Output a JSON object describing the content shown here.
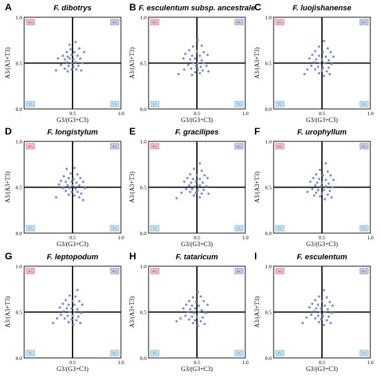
{
  "colors": {
    "point": "#7b8fcf",
    "frame": "#000000",
    "AG_fill": "#f3c6d3",
    "AG_border": "#c0506e",
    "AG_text": "#a8324f",
    "AU_fill": "#cfd5ee",
    "AU_border": "#5d6aa8",
    "AU_text": "#3f4b8c",
    "TG_fill": "#cbe7f3",
    "TG_border": "#4c9ac0",
    "TG_text": "#2f7ea6",
    "TC_fill": "#cbe7f3",
    "TC_border": "#4c9ac0",
    "TC_text": "#2f7ea6"
  },
  "chart_data": [
    {
      "panel": "A",
      "title": "F. dibotrys",
      "type": "scatter",
      "xlabel": "G3/(G3+C3)",
      "ylabel": "A3/(A3+T3)",
      "xlim": [
        0,
        1.0
      ],
      "ylim": [
        0,
        1.0
      ],
      "xticks": [
        "0.5",
        "1.0"
      ],
      "yticks": [
        "0.0",
        "0.5",
        "1.0"
      ],
      "quadrants": {
        "top_left": "AG",
        "top_right": "AU",
        "bottom_left": "TC",
        "bottom_right": "TG"
      },
      "points": [
        [
          0.47,
          0.7
        ],
        [
          0.53,
          0.73
        ],
        [
          0.48,
          0.65
        ],
        [
          0.44,
          0.62
        ],
        [
          0.52,
          0.62
        ],
        [
          0.57,
          0.66
        ],
        [
          0.4,
          0.58
        ],
        [
          0.45,
          0.57
        ],
        [
          0.49,
          0.59
        ],
        [
          0.55,
          0.58
        ],
        [
          0.62,
          0.62
        ],
        [
          0.35,
          0.55
        ],
        [
          0.42,
          0.54
        ],
        [
          0.47,
          0.55
        ],
        [
          0.51,
          0.54
        ],
        [
          0.58,
          0.55
        ],
        [
          0.44,
          0.51
        ],
        [
          0.49,
          0.5
        ],
        [
          0.53,
          0.51
        ],
        [
          0.6,
          0.5
        ],
        [
          0.38,
          0.48
        ],
        [
          0.46,
          0.47
        ],
        [
          0.51,
          0.46
        ],
        [
          0.56,
          0.47
        ],
        [
          0.42,
          0.44
        ],
        [
          0.49,
          0.43
        ],
        [
          0.54,
          0.43
        ],
        [
          0.33,
          0.42
        ],
        [
          0.45,
          0.41
        ],
        [
          0.59,
          0.42
        ]
      ]
    },
    {
      "panel": "B",
      "title": "F. esculentum subsp. ancestrale",
      "type": "scatter",
      "xlabel": "G3/(G3+C3)",
      "ylabel": "A3/(A3+T3)",
      "xlim": [
        0,
        1.0
      ],
      "ylim": [
        0,
        1.0
      ],
      "xticks": [
        "0.5",
        "1.0"
      ],
      "yticks": [
        "0.0",
        "0.5",
        "1.0"
      ],
      "quadrants": {
        "top_left": "AG",
        "top_right": "AU",
        "bottom_left": "TC",
        "bottom_right": "TG"
      },
      "points": [
        [
          0.51,
          0.75
        ],
        [
          0.46,
          0.68
        ],
        [
          0.55,
          0.69
        ],
        [
          0.42,
          0.64
        ],
        [
          0.5,
          0.63
        ],
        [
          0.57,
          0.62
        ],
        [
          0.38,
          0.6
        ],
        [
          0.45,
          0.58
        ],
        [
          0.53,
          0.58
        ],
        [
          0.61,
          0.59
        ],
        [
          0.36,
          0.55
        ],
        [
          0.43,
          0.54
        ],
        [
          0.48,
          0.55
        ],
        [
          0.55,
          0.53
        ],
        [
          0.46,
          0.5
        ],
        [
          0.51,
          0.5
        ],
        [
          0.57,
          0.5
        ],
        [
          0.41,
          0.48
        ],
        [
          0.49,
          0.47
        ],
        [
          0.54,
          0.46
        ],
        [
          0.6,
          0.47
        ],
        [
          0.44,
          0.44
        ],
        [
          0.51,
          0.43
        ],
        [
          0.56,
          0.42
        ],
        [
          0.37,
          0.43
        ],
        [
          0.48,
          0.4
        ],
        [
          0.53,
          0.39
        ],
        [
          0.31,
          0.38
        ],
        [
          0.62,
          0.41
        ],
        [
          0.45,
          0.37
        ]
      ]
    },
    {
      "panel": "C",
      "title": "F. luojishanense",
      "type": "scatter",
      "xlabel": "G3/(G3+C3)",
      "ylabel": "A3/(A3+T3)",
      "xlim": [
        0,
        1.0
      ],
      "ylim": [
        0,
        1.0
      ],
      "xticks": [
        "0.5",
        "1.0"
      ],
      "yticks": [
        "0.0",
        "0.5",
        "1.0"
      ],
      "quadrants": {
        "top_left": "AG",
        "top_right": "AU",
        "bottom_left": "TC",
        "bottom_right": "TG"
      },
      "points": [
        [
          0.52,
          0.74
        ],
        [
          0.47,
          0.68
        ],
        [
          0.56,
          0.66
        ],
        [
          0.43,
          0.63
        ],
        [
          0.51,
          0.62
        ],
        [
          0.59,
          0.62
        ],
        [
          0.4,
          0.59
        ],
        [
          0.47,
          0.58
        ],
        [
          0.54,
          0.57
        ],
        [
          0.62,
          0.57
        ],
        [
          0.37,
          0.55
        ],
        [
          0.44,
          0.54
        ],
        [
          0.5,
          0.54
        ],
        [
          0.57,
          0.53
        ],
        [
          0.42,
          0.51
        ],
        [
          0.48,
          0.5
        ],
        [
          0.53,
          0.5
        ],
        [
          0.6,
          0.49
        ],
        [
          0.39,
          0.47
        ],
        [
          0.46,
          0.46
        ],
        [
          0.51,
          0.45
        ],
        [
          0.57,
          0.45
        ],
        [
          0.43,
          0.43
        ],
        [
          0.5,
          0.42
        ],
        [
          0.55,
          0.41
        ],
        [
          0.35,
          0.43
        ],
        [
          0.47,
          0.39
        ],
        [
          0.32,
          0.38
        ],
        [
          0.58,
          0.38
        ],
        [
          0.52,
          0.36
        ]
      ]
    },
    {
      "panel": "D",
      "title": "F. longistylum",
      "type": "scatter",
      "xlabel": "G3/(G3+C3)",
      "ylabel": "A3/(A3+T3)",
      "xlim": [
        0,
        1.0
      ],
      "ylim": [
        0,
        1.0
      ],
      "xticks": [
        "0.5",
        "1.0"
      ],
      "yticks": [
        "0.0",
        "0.5",
        "1.0"
      ],
      "quadrants": {
        "top_left": "AG",
        "top_right": "AU",
        "bottom_left": "TC",
        "bottom_right": "TG"
      },
      "points": [
        [
          0.44,
          0.7
        ],
        [
          0.52,
          0.71
        ],
        [
          0.48,
          0.65
        ],
        [
          0.41,
          0.62
        ],
        [
          0.55,
          0.64
        ],
        [
          0.46,
          0.6
        ],
        [
          0.51,
          0.59
        ],
        [
          0.58,
          0.6
        ],
        [
          0.38,
          0.57
        ],
        [
          0.43,
          0.56
        ],
        [
          0.49,
          0.56
        ],
        [
          0.54,
          0.55
        ],
        [
          0.61,
          0.56
        ],
        [
          0.36,
          0.53
        ],
        [
          0.45,
          0.52
        ],
        [
          0.5,
          0.52
        ],
        [
          0.57,
          0.52
        ],
        [
          0.4,
          0.49
        ],
        [
          0.47,
          0.49
        ],
        [
          0.53,
          0.48
        ],
        [
          0.63,
          0.49
        ],
        [
          0.43,
          0.46
        ],
        [
          0.49,
          0.45
        ],
        [
          0.55,
          0.45
        ],
        [
          0.59,
          0.43
        ],
        [
          0.46,
          0.42
        ],
        [
          0.52,
          0.41
        ],
        [
          0.33,
          0.39
        ],
        [
          0.57,
          0.39
        ],
        [
          0.61,
          0.36
        ]
      ]
    },
    {
      "panel": "E",
      "title": "F. gracilipes",
      "type": "scatter",
      "xlabel": "G3/(G3+C3)",
      "ylabel": "A3/(A3+T3)",
      "xlim": [
        0,
        1.0
      ],
      "ylim": [
        0,
        1.0
      ],
      "xticks": [
        "0.5",
        "1.0"
      ],
      "yticks": [
        "0.0",
        "0.5",
        "1.0"
      ],
      "quadrants": {
        "top_left": "AG",
        "top_right": "AU",
        "bottom_left": "TC",
        "bottom_right": "TG"
      },
      "points": [
        [
          0.53,
          0.76
        ],
        [
          0.47,
          0.7
        ],
        [
          0.55,
          0.68
        ],
        [
          0.43,
          0.64
        ],
        [
          0.5,
          0.63
        ],
        [
          0.58,
          0.63
        ],
        [
          0.4,
          0.6
        ],
        [
          0.46,
          0.59
        ],
        [
          0.53,
          0.59
        ],
        [
          0.61,
          0.6
        ],
        [
          0.37,
          0.56
        ],
        [
          0.44,
          0.55
        ],
        [
          0.49,
          0.56
        ],
        [
          0.56,
          0.55
        ],
        [
          0.42,
          0.52
        ],
        [
          0.48,
          0.51
        ],
        [
          0.53,
          0.52
        ],
        [
          0.6,
          0.51
        ],
        [
          0.39,
          0.48
        ],
        [
          0.45,
          0.48
        ],
        [
          0.51,
          0.47
        ],
        [
          0.57,
          0.47
        ],
        [
          0.43,
          0.45
        ],
        [
          0.49,
          0.44
        ],
        [
          0.55,
          0.43
        ],
        [
          0.34,
          0.44
        ],
        [
          0.47,
          0.41
        ],
        [
          0.29,
          0.38
        ],
        [
          0.62,
          0.43
        ],
        [
          0.53,
          0.39
        ]
      ]
    },
    {
      "panel": "F",
      "title": "F. urophyllum",
      "type": "scatter",
      "xlabel": "G3/(G3+C3)",
      "ylabel": "A3/(A3+T3)",
      "xlim": [
        0,
        1.0
      ],
      "ylim": [
        0,
        1.0
      ],
      "xticks": [
        "0.5",
        "1.0"
      ],
      "yticks": [
        "0.0",
        "0.5",
        "1.0"
      ],
      "quadrants": {
        "top_left": "AG",
        "top_right": "AU",
        "bottom_left": "TC",
        "bottom_right": "TG"
      },
      "points": [
        [
          0.54,
          0.76
        ],
        [
          0.48,
          0.69
        ],
        [
          0.56,
          0.67
        ],
        [
          0.44,
          0.64
        ],
        [
          0.51,
          0.63
        ],
        [
          0.59,
          0.63
        ],
        [
          0.41,
          0.6
        ],
        [
          0.47,
          0.59
        ],
        [
          0.54,
          0.58
        ],
        [
          0.62,
          0.58
        ],
        [
          0.38,
          0.56
        ],
        [
          0.45,
          0.55
        ],
        [
          0.5,
          0.55
        ],
        [
          0.57,
          0.54
        ],
        [
          0.43,
          0.52
        ],
        [
          0.49,
          0.51
        ],
        [
          0.54,
          0.51
        ],
        [
          0.61,
          0.5
        ],
        [
          0.4,
          0.48
        ],
        [
          0.46,
          0.47
        ],
        [
          0.52,
          0.47
        ],
        [
          0.58,
          0.46
        ],
        [
          0.44,
          0.44
        ],
        [
          0.5,
          0.43
        ],
        [
          0.56,
          0.42
        ],
        [
          0.35,
          0.45
        ],
        [
          0.48,
          0.4
        ],
        [
          0.6,
          0.39
        ],
        [
          0.53,
          0.37
        ],
        [
          0.42,
          0.41
        ]
      ]
    },
    {
      "panel": "G",
      "title": "F. leptopodum",
      "type": "scatter",
      "xlabel": "G3/(G3+C3)",
      "ylabel": "A3/(A3+T3)",
      "xlim": [
        0,
        1.0
      ],
      "ylim": [
        0,
        1.0
      ],
      "xticks": [
        "0.5",
        "1.0"
      ],
      "yticks": [
        "0.0",
        "0.5",
        "1.0"
      ],
      "quadrants": {
        "top_left": "AG",
        "top_right": "AU",
        "bottom_left": "TC",
        "bottom_right": "TG"
      },
      "points": [
        [
          0.55,
          0.74
        ],
        [
          0.47,
          0.68
        ],
        [
          0.53,
          0.67
        ],
        [
          0.43,
          0.63
        ],
        [
          0.5,
          0.62
        ],
        [
          0.57,
          0.62
        ],
        [
          0.4,
          0.59
        ],
        [
          0.46,
          0.58
        ],
        [
          0.52,
          0.58
        ],
        [
          0.6,
          0.58
        ],
        [
          0.37,
          0.55
        ],
        [
          0.44,
          0.54
        ],
        [
          0.49,
          0.54
        ],
        [
          0.55,
          0.53
        ],
        [
          0.41,
          0.51
        ],
        [
          0.47,
          0.5
        ],
        [
          0.52,
          0.5
        ],
        [
          0.59,
          0.49
        ],
        [
          0.38,
          0.47
        ],
        [
          0.45,
          0.46
        ],
        [
          0.5,
          0.46
        ],
        [
          0.56,
          0.45
        ],
        [
          0.42,
          0.43
        ],
        [
          0.49,
          0.42
        ],
        [
          0.54,
          0.41
        ],
        [
          0.34,
          0.43
        ],
        [
          0.46,
          0.39
        ],
        [
          0.3,
          0.38
        ],
        [
          0.58,
          0.38
        ],
        [
          0.51,
          0.36
        ]
      ]
    },
    {
      "panel": "H",
      "title": "F. tataricum",
      "type": "scatter",
      "xlabel": "G3/(G3+C3)",
      "ylabel": "A3/(A3+T3)",
      "xlim": [
        0,
        1.0
      ],
      "ylim": [
        0,
        1.0
      ],
      "xticks": [
        "0.5",
        "1.0"
      ],
      "yticks": [
        "0.0",
        "0.5",
        "1.0"
      ],
      "quadrants": {
        "top_left": "AG",
        "top_right": "AU",
        "bottom_left": "TC",
        "bottom_right": "TG"
      },
      "points": [
        [
          0.51,
          0.72
        ],
        [
          0.46,
          0.66
        ],
        [
          0.54,
          0.67
        ],
        [
          0.42,
          0.62
        ],
        [
          0.49,
          0.61
        ],
        [
          0.57,
          0.62
        ],
        [
          0.39,
          0.58
        ],
        [
          0.45,
          0.57
        ],
        [
          0.52,
          0.57
        ],
        [
          0.61,
          0.58
        ],
        [
          0.36,
          0.54
        ],
        [
          0.43,
          0.53
        ],
        [
          0.48,
          0.54
        ],
        [
          0.55,
          0.52
        ],
        [
          0.41,
          0.5
        ],
        [
          0.47,
          0.49
        ],
        [
          0.52,
          0.5
        ],
        [
          0.59,
          0.49
        ],
        [
          0.38,
          0.46
        ],
        [
          0.45,
          0.45
        ],
        [
          0.5,
          0.45
        ],
        [
          0.56,
          0.44
        ],
        [
          0.42,
          0.42
        ],
        [
          0.48,
          0.41
        ],
        [
          0.54,
          0.4
        ],
        [
          0.33,
          0.43
        ],
        [
          0.46,
          0.38
        ],
        [
          0.29,
          0.4
        ],
        [
          0.58,
          0.37
        ],
        [
          0.51,
          0.35
        ]
      ]
    },
    {
      "panel": "I",
      "title": "F. esculentum",
      "type": "scatter",
      "xlabel": "G3/(G3+C3)",
      "ylabel": "A3/(A3+T3)",
      "xlim": [
        0,
        1.0
      ],
      "ylim": [
        0,
        1.0
      ],
      "xticks": [
        "0.5",
        "1.0"
      ],
      "yticks": [
        "0.0",
        "0.5",
        "1.0"
      ],
      "quadrants": {
        "top_left": "AG",
        "top_right": "AU",
        "bottom_left": "TC",
        "bottom_right": "TG"
      },
      "points": [
        [
          0.52,
          0.74
        ],
        [
          0.47,
          0.67
        ],
        [
          0.55,
          0.66
        ],
        [
          0.43,
          0.63
        ],
        [
          0.5,
          0.62
        ],
        [
          0.58,
          0.61
        ],
        [
          0.4,
          0.59
        ],
        [
          0.46,
          0.58
        ],
        [
          0.53,
          0.57
        ],
        [
          0.61,
          0.57
        ],
        [
          0.37,
          0.55
        ],
        [
          0.44,
          0.54
        ],
        [
          0.49,
          0.54
        ],
        [
          0.56,
          0.53
        ],
        [
          0.42,
          0.51
        ],
        [
          0.48,
          0.5
        ],
        [
          0.53,
          0.5
        ],
        [
          0.6,
          0.49
        ],
        [
          0.39,
          0.47
        ],
        [
          0.46,
          0.46
        ],
        [
          0.51,
          0.46
        ],
        [
          0.57,
          0.45
        ],
        [
          0.43,
          0.43
        ],
        [
          0.49,
          0.42
        ],
        [
          0.55,
          0.41
        ],
        [
          0.34,
          0.44
        ],
        [
          0.47,
          0.39
        ],
        [
          0.3,
          0.38
        ],
        [
          0.59,
          0.38
        ],
        [
          0.52,
          0.36
        ]
      ]
    }
  ]
}
